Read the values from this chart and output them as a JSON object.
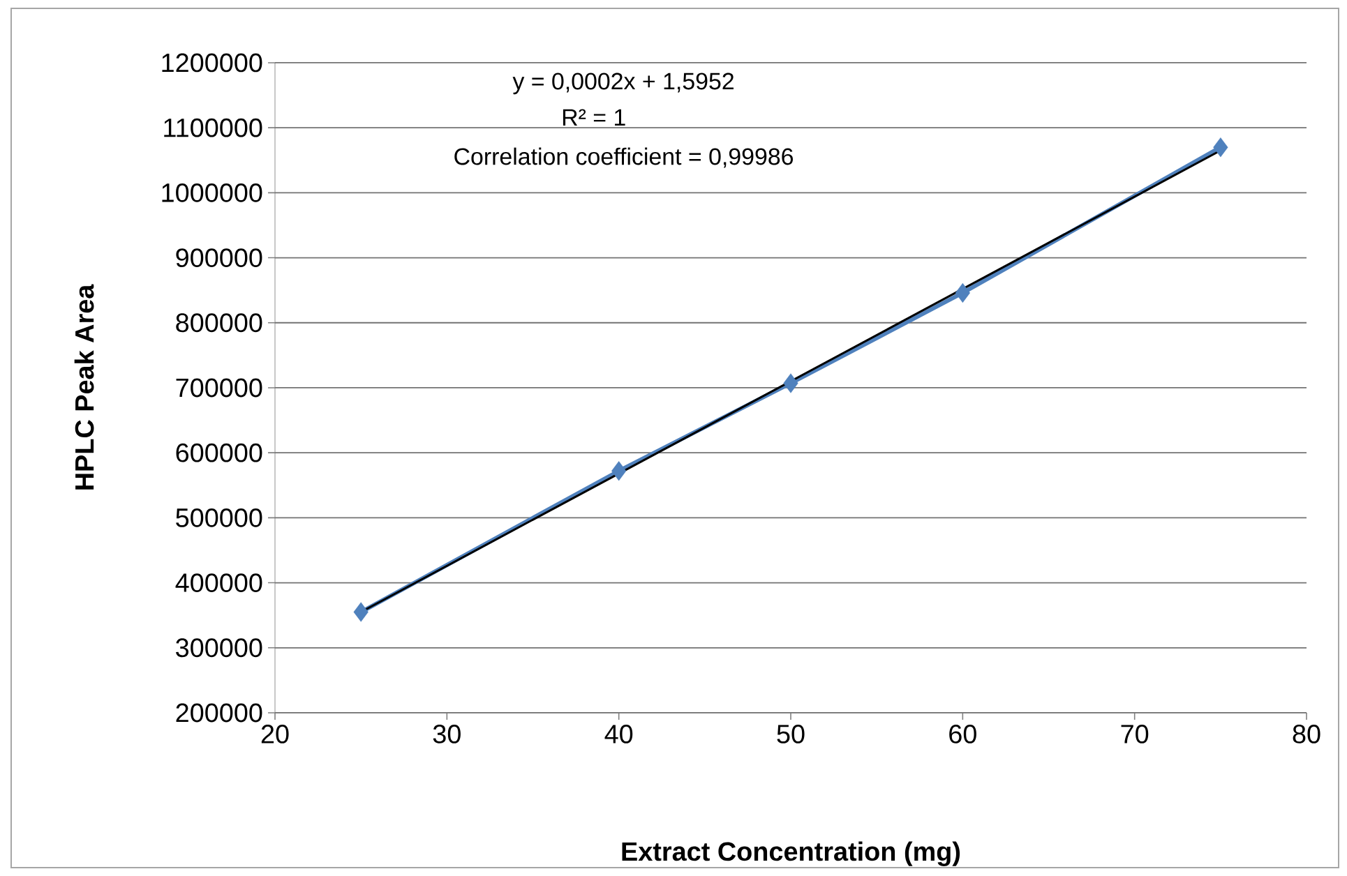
{
  "chart_data": {
    "type": "line",
    "xlabel": "Extract Concentration (mg)",
    "ylabel": "HPLC Peak Area",
    "x": [
      25,
      40,
      50,
      60,
      75
    ],
    "series": [
      {
        "color": "#4f81bd",
        "values": [
          355000,
          572000,
          707000,
          846000,
          1070000
        ],
        "marker": "diamond"
      },
      {
        "type": "line",
        "color": "#000000",
        "x": [
          25,
          75
        ],
        "values": [
          355000,
          1065000
        ],
        "marker": "none"
      }
    ],
    "annotations": [
      "y = 0,0002x + 1,5952",
      "R² = 1",
      "Correlation coefficient = 0,99986"
    ],
    "xlim": [
      20,
      80
    ],
    "xticks": [
      20,
      30,
      40,
      50,
      60,
      70,
      80
    ],
    "ylim": [
      200000,
      1200000
    ],
    "yticks": [
      200000,
      300000,
      400000,
      500000,
      600000,
      700000,
      800000,
      900000,
      1000000,
      1100000,
      1200000
    ],
    "grid": "y",
    "line_style": "solid"
  }
}
